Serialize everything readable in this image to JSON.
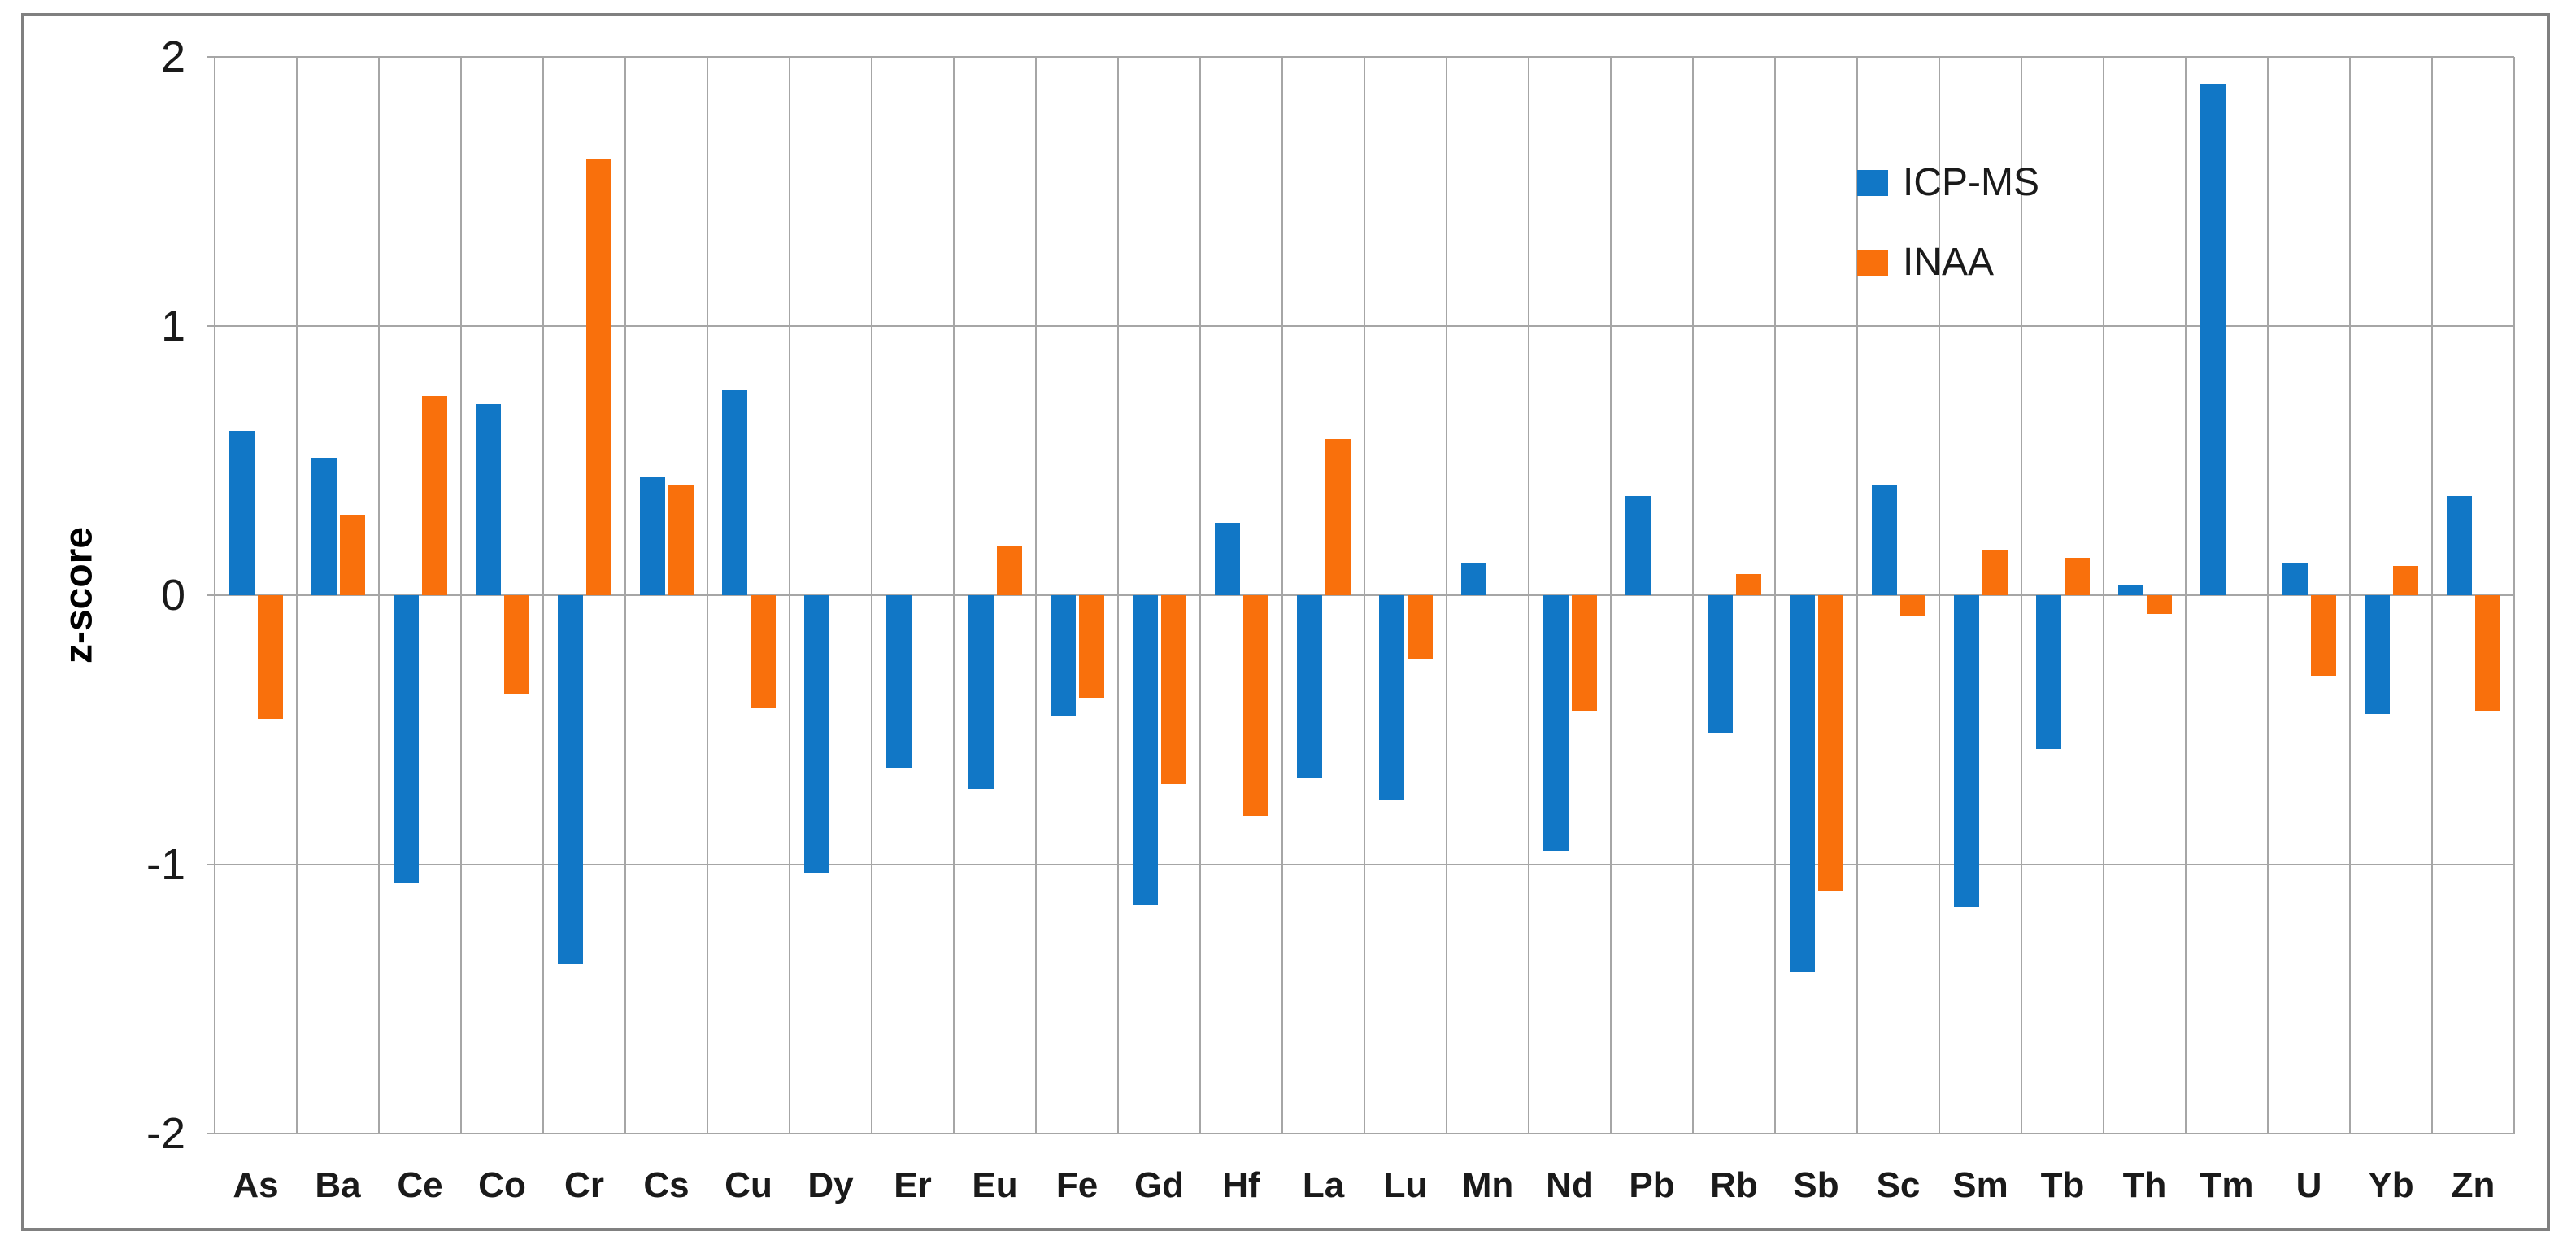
{
  "chart_data": {
    "type": "bar",
    "title": "",
    "xlabel": "",
    "ylabel": "z-score",
    "ylim": [
      -2,
      2
    ],
    "yticks": [
      2,
      1,
      0,
      -1,
      -2
    ],
    "ytick_labels": [
      "2",
      "1",
      "0",
      "-1",
      "-2"
    ],
    "grid": true,
    "legend_position": "upper-right-inside",
    "categories": [
      "As",
      "Ba",
      "Ce",
      "Co",
      "Cr",
      "Cs",
      "Cu",
      "Dy",
      "Er",
      "Eu",
      "Fe",
      "Gd",
      "Hf",
      "La",
      "Lu",
      "Mn",
      "Nd",
      "Pb",
      "Rb",
      "Sb",
      "Sc",
      "Sm",
      "Tb",
      "Th",
      "Tm",
      "U",
      "Yb",
      "Zn"
    ],
    "series": [
      {
        "name": "ICP-MS",
        "color": "#1177c6",
        "values": [
          0.61,
          0.51,
          -1.07,
          0.71,
          -1.37,
          0.44,
          0.76,
          -1.03,
          -0.64,
          -0.72,
          -0.45,
          -1.15,
          0.27,
          -0.68,
          -0.76,
          0.12,
          -0.95,
          0.37,
          -0.51,
          -1.4,
          0.41,
          -1.16,
          -0.57,
          0.04,
          1.9,
          0.12,
          -0.44,
          0.37
        ]
      },
      {
        "name": "INAA",
        "color": "#f9700c",
        "values": [
          -0.46,
          0.3,
          0.74,
          -0.37,
          1.62,
          0.41,
          -0.42,
          null,
          null,
          0.18,
          -0.38,
          -0.7,
          -0.82,
          0.58,
          -0.24,
          null,
          -0.43,
          null,
          0.08,
          -1.1,
          -0.08,
          0.17,
          0.14,
          -0.07,
          null,
          -0.3,
          0.11,
          -0.43
        ]
      }
    ],
    "colors": {
      "gridline": "#a6a6a6",
      "frame_border": "#808080",
      "text": "#1a1a1a",
      "background": "#ffffff"
    }
  }
}
